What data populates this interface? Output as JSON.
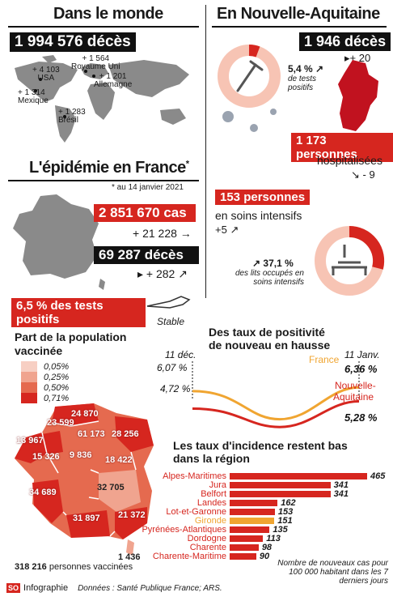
{
  "world": {
    "title": "Dans le monde",
    "deaths": "1 994 576 décès",
    "labels": [
      {
        "value": "+ 1 564",
        "place": "Royaume Uni"
      },
      {
        "value": "+ 4 103",
        "place": "USA"
      },
      {
        "value": "+ 1 201",
        "place": "Allemagne"
      },
      {
        "value": "+ 1 314",
        "place": "Mexique"
      },
      {
        "value": "+ 1 283",
        "place": "Brésil"
      }
    ]
  },
  "nouvelle_aquitaine": {
    "title": "En Nouvelle-Aquitaine",
    "deaths": "1 946 décès",
    "deaths_change": "+ 20",
    "positive_rate": "5,4 %",
    "positive_rate_label": "de tests positifs",
    "hospitalised": "1 173 personnes",
    "hospitalised_label": "hospitalisées",
    "hospitalised_change": "- 9",
    "icu": "153 personnes",
    "icu_label": "en soins intensifs",
    "icu_change": "+5",
    "beds_rate": "37,1 %",
    "beds_label": "des lits occupés en soins intensifs"
  },
  "france": {
    "title": "L'épidémie en France",
    "title_star": "*",
    "date_note": "* au 14 janvier 2021",
    "cases": "2 851 670 cas",
    "cases_change": "+ 21 228",
    "deaths": "69 287 décès",
    "deaths_change": "+ 282",
    "positive_tests": "6,5 % des tests positifs",
    "positive_status": "Stable"
  },
  "vaccination": {
    "title": "Part de la population vaccinée",
    "legend": [
      {
        "label": "0,05%",
        "color": "#f7cfc3"
      },
      {
        "label": "0,25%",
        "color": "#f0a48f"
      },
      {
        "label": "0,50%",
        "color": "#e56a4f"
      },
      {
        "label": "0,71%",
        "color": "#d6261f"
      }
    ],
    "regions": [
      "24 870",
      "23 599",
      "13 967",
      "61 173",
      "28 256",
      "15 326",
      "9 836",
      "18 422",
      "34 689",
      "32 705",
      "31 897",
      "21 372",
      "1 436"
    ],
    "total": "318 216",
    "total_label": "personnes vaccinées"
  },
  "positivity_chart": {
    "title": "Des taux de positivité de nouveau en hausse",
    "start_label": "11 déc.",
    "end_label": "11 Janv."
  },
  "chart_data": [
    {
      "type": "line",
      "title": "Des taux de positivité de nouveau en hausse",
      "x_start": "11 déc.",
      "x_end": "11 Janv.",
      "series": [
        {
          "name": "France",
          "color": "#f0a531",
          "start": "6,07 %",
          "end": "6,36 %",
          "start_value": 6.07,
          "end_value": 6.36,
          "min_value": 3.9
        },
        {
          "name": "Nouvelle-Aquitaine",
          "color": "#d6261f",
          "start": "4,72 %",
          "end": "5,28 %",
          "start_value": 4.72,
          "end_value": 5.28,
          "min_value": 3.3
        }
      ]
    },
    {
      "type": "bar",
      "title": "Les taux d'incidence restent bas dans la région",
      "note": "Nombre de nouveaux cas pour 100 000 habitant dans les 7 derniers jours",
      "categories": [
        "Alpes-Maritimes",
        "Jura",
        "Belfort",
        "Landes",
        "Lot-et-Garonne",
        "Gironde",
        "Pyrénées-Atlantiques",
        "Dordogne",
        "Charente",
        "Charente-Maritime"
      ],
      "values": [
        465,
        341,
        341,
        162,
        153,
        151,
        135,
        113,
        98,
        90
      ],
      "highlight": "Gironde",
      "highlight_color": "#f0a531",
      "bar_color": "#d6261f"
    }
  ],
  "footer": {
    "logo": "SO",
    "brand": "Infographie",
    "source": "Données : Santé Publique France; ARS."
  }
}
